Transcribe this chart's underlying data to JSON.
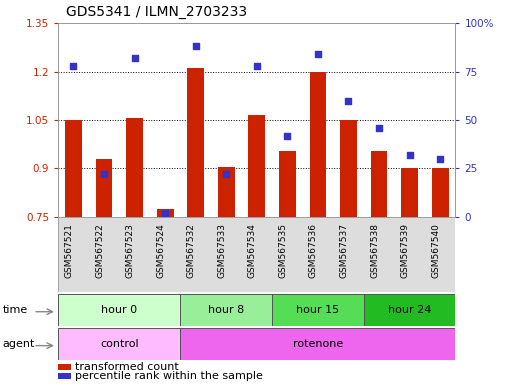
{
  "title": "GDS5341 / ILMN_2703233",
  "samples": [
    "GSM567521",
    "GSM567522",
    "GSM567523",
    "GSM567524",
    "GSM567532",
    "GSM567533",
    "GSM567534",
    "GSM567535",
    "GSM567536",
    "GSM567537",
    "GSM567538",
    "GSM567539",
    "GSM567540"
  ],
  "bar_values": [
    1.05,
    0.93,
    1.055,
    0.775,
    1.21,
    0.905,
    1.065,
    0.955,
    1.2,
    1.05,
    0.955,
    0.9,
    0.9
  ],
  "scatter_values": [
    0.78,
    0.22,
    0.82,
    0.02,
    0.88,
    0.22,
    0.78,
    0.42,
    0.84,
    0.6,
    0.46,
    0.32,
    0.3
  ],
  "bar_bottom": 0.75,
  "ylim_left": [
    0.75,
    1.35
  ],
  "ylim_right": [
    0.0,
    1.0
  ],
  "yticks_left": [
    0.75,
    0.9,
    1.05,
    1.2,
    1.35
  ],
  "yticks_right": [
    0.0,
    0.25,
    0.5,
    0.75,
    1.0
  ],
  "ytick_labels_right": [
    "0",
    "25",
    "50",
    "75",
    "100%"
  ],
  "ytick_labels_left": [
    "0.75",
    "0.9",
    "1.05",
    "1.2",
    "1.35"
  ],
  "hlines": [
    0.9,
    1.05,
    1.2
  ],
  "bar_color": "#cc2200",
  "scatter_color": "#3333cc",
  "time_groups": [
    {
      "label": "hour 0",
      "start": 0,
      "end": 4,
      "color": "#ccffcc"
    },
    {
      "label": "hour 8",
      "start": 4,
      "end": 7,
      "color": "#99ee99"
    },
    {
      "label": "hour 15",
      "start": 7,
      "end": 10,
      "color": "#55dd55"
    },
    {
      "label": "hour 24",
      "start": 10,
      "end": 13,
      "color": "#22bb22"
    }
  ],
  "agent_groups": [
    {
      "label": "control",
      "start": 0,
      "end": 4,
      "color": "#ffbbff"
    },
    {
      "label": "rotenone",
      "start": 4,
      "end": 13,
      "color": "#ee66ee"
    }
  ],
  "time_label": "time",
  "agent_label": "agent",
  "legend_bar_label": "transformed count",
  "legend_scatter_label": "percentile rank within the sample",
  "bg_color": "#ffffff",
  "tick_color_left": "#cc2200",
  "tick_color_right": "#3333cc",
  "bar_width": 0.55
}
